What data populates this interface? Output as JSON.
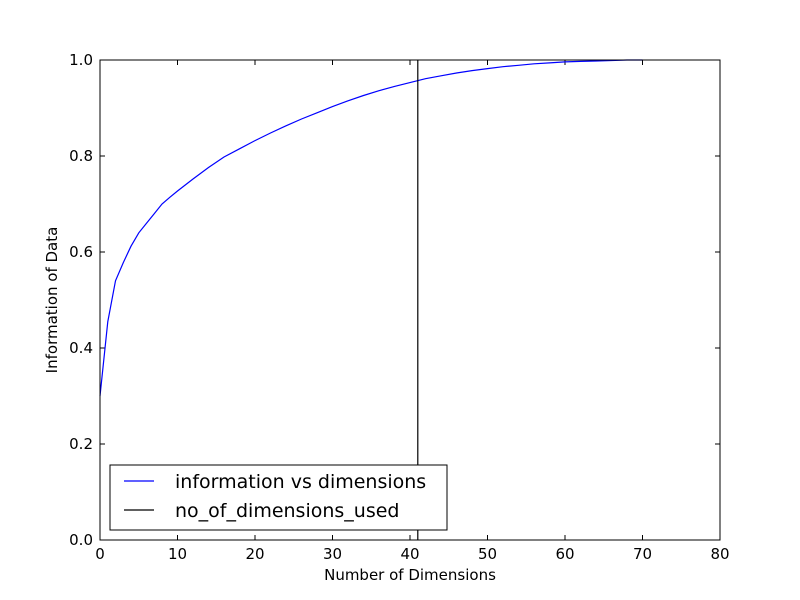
{
  "chart_data": {
    "type": "line",
    "xlabel": "Number of Dimensions",
    "ylabel": "Information of Data",
    "xlim": [
      0,
      80
    ],
    "ylim": [
      0,
      1.0
    ],
    "xticks": [
      "0",
      "10",
      "20",
      "30",
      "40",
      "50",
      "60",
      "70",
      "80"
    ],
    "yticks": [
      "0.0",
      "0.2",
      "0.4",
      "0.6",
      "0.8",
      "1.0"
    ],
    "grid": false,
    "legend_position": "lower-left",
    "series": [
      {
        "name": "information vs dimensions",
        "color": "#0000ff",
        "x": [
          0,
          1,
          2,
          3,
          4,
          5,
          6,
          7,
          8,
          9,
          10,
          12,
          14,
          16,
          18,
          20,
          22,
          24,
          26,
          28,
          30,
          32,
          34,
          36,
          38,
          40,
          42,
          44,
          46,
          48,
          50,
          52,
          54,
          56,
          58,
          60,
          62,
          64,
          66,
          68,
          70
        ],
        "y": [
          0.3,
          0.455,
          0.54,
          0.578,
          0.612,
          0.64,
          0.66,
          0.68,
          0.7,
          0.714,
          0.727,
          0.752,
          0.776,
          0.798,
          0.815,
          0.832,
          0.848,
          0.863,
          0.877,
          0.89,
          0.903,
          0.915,
          0.926,
          0.936,
          0.945,
          0.953,
          0.961,
          0.967,
          0.973,
          0.978,
          0.982,
          0.986,
          0.989,
          0.992,
          0.994,
          0.996,
          0.997,
          0.998,
          0.999,
          1.0,
          1.0
        ]
      },
      {
        "name": "no_of_dimensions_used",
        "color": "#000000",
        "x": [
          41,
          41
        ],
        "y": [
          0.0,
          1.0
        ]
      }
    ]
  }
}
